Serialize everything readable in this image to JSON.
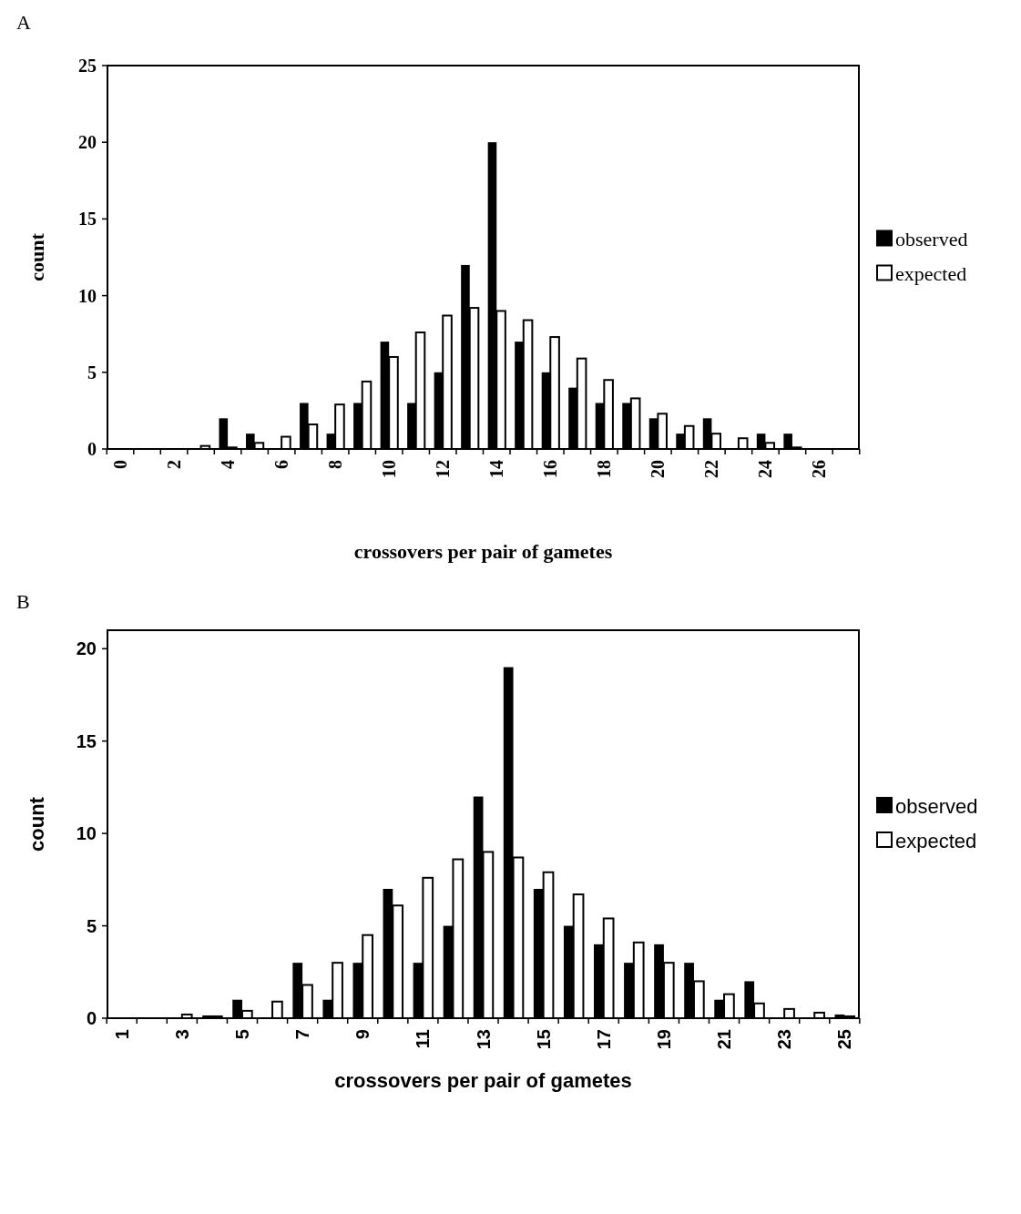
{
  "chart_data": [
    {
      "type": "bar",
      "title": "A",
      "xlabel": "crossovers per pair of gametes",
      "ylabel": "count",
      "categories": [
        "0",
        null,
        "2",
        null,
        "4",
        null,
        "6",
        null,
        "8",
        null,
        "10",
        null,
        "12",
        null,
        "14",
        null,
        "16",
        null,
        "18",
        null,
        "20",
        null,
        "22",
        null,
        "24",
        null,
        "26",
        null
      ],
      "series": [
        {
          "name": "observed",
          "color": "#000000",
          "values": [
            0,
            0,
            0,
            0,
            2,
            1,
            0,
            3,
            1,
            3,
            7,
            3,
            5,
            12,
            20,
            7,
            5,
            4,
            3,
            3,
            2,
            1,
            2,
            0,
            1,
            1,
            0,
            0
          ]
        },
        {
          "name": "expected",
          "color": "#ffffff",
          "values": [
            0,
            0,
            0,
            0.2,
            0.1,
            0.4,
            0.8,
            1.6,
            2.9,
            4.4,
            6,
            7.6,
            8.7,
            9.2,
            9,
            8.4,
            7.3,
            5.9,
            4.5,
            3.3,
            2.3,
            1.5,
            1,
            0.7,
            0.4,
            0.1,
            0,
            0
          ]
        }
      ],
      "ylim": [
        0,
        25
      ],
      "yticks": [
        0,
        5,
        10,
        15,
        20,
        25
      ],
      "legend": "right"
    },
    {
      "type": "bar",
      "title": "B",
      "xlabel": "crossovers per pair of gametes",
      "ylabel": "count",
      "categories": [
        "1",
        null,
        "3",
        null,
        "5",
        null,
        "7",
        null,
        "9",
        null,
        "11",
        null,
        "13",
        null,
        "15",
        null,
        "17",
        null,
        "19",
        null,
        "21",
        null,
        "23",
        null,
        "25"
      ],
      "series": [
        {
          "name": "observed",
          "color": "#000000",
          "values": [
            0,
            0,
            0,
            0.15,
            1,
            0,
            3,
            1,
            3,
            7,
            3,
            5,
            12,
            19,
            7,
            5,
            4,
            3,
            4,
            3,
            1,
            2,
            0,
            0,
            0.2
          ]
        },
        {
          "name": "expected",
          "color": "#ffffff",
          "values": [
            0,
            0,
            0.2,
            0.1,
            0.4,
            0.9,
            1.8,
            3,
            4.5,
            6.1,
            7.6,
            8.6,
            9,
            8.7,
            7.9,
            6.7,
            5.4,
            4.1,
            3,
            2,
            1.3,
            0.8,
            0.5,
            0.3,
            0.1
          ]
        }
      ],
      "ylim": [
        0,
        21
      ],
      "yticks": [
        0,
        5,
        10,
        15,
        20
      ],
      "legend": "right"
    }
  ]
}
